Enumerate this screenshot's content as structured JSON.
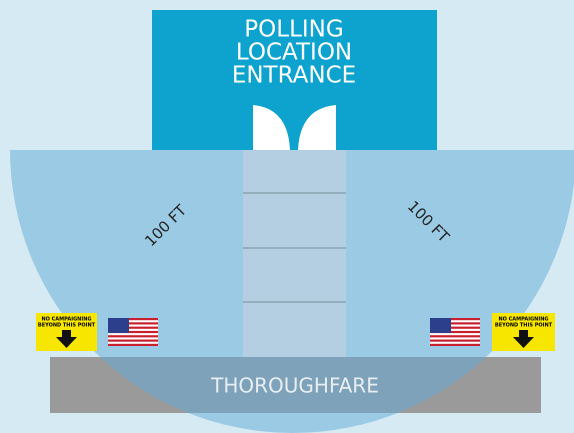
{
  "building": {
    "label_lines": [
      "POLLING",
      "LOCATION",
      "ENTRANCE"
    ]
  },
  "distance_labels": [
    "100 FT",
    "100 FT"
  ],
  "road": {
    "label": "THOROUGHFARE"
  },
  "signs": [
    {
      "text_lines": [
        "NO CAMPAIGNING",
        "BEYOND THIS POINT"
      ]
    },
    {
      "text_lines": [
        "NO CAMPAIGNING",
        "BEYOND THIS POINT"
      ]
    }
  ]
}
